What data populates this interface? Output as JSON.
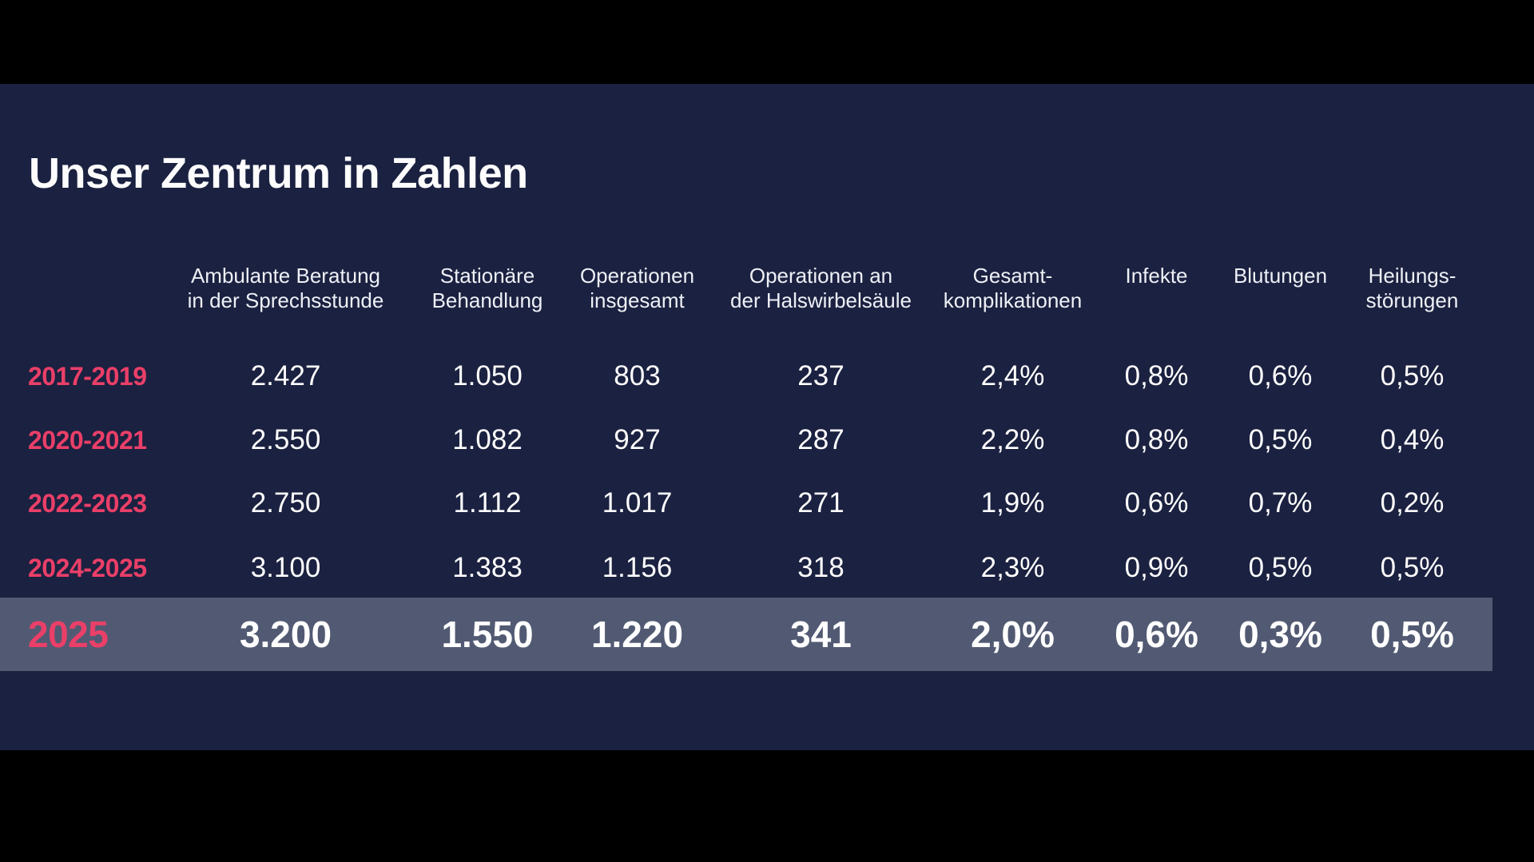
{
  "slide": {
    "title": "Unser Zentrum in Zahlen",
    "colors": {
      "letterbox": "#000000",
      "background": "#1b2140",
      "highlight_row_background": "#525a73",
      "accent_pink": "#ea3f68",
      "text_white": "#ffffff"
    }
  },
  "table": {
    "columns": [
      {
        "line1": "Ambulante Beratung",
        "line2": "in der Sprechsstunde"
      },
      {
        "line1": "Stationäre",
        "line2": "Behandlung"
      },
      {
        "line1": "Operationen",
        "line2": "insgesamt"
      },
      {
        "line1": "Operationen an",
        "line2": "der Halswirbelsäule"
      },
      {
        "line1": "Gesamt-",
        "line2": "komplikationen"
      },
      {
        "line1": "Infekte",
        "line2": ""
      },
      {
        "line1": "Blutungen",
        "line2": ""
      },
      {
        "line1": "Heilungs-",
        "line2": "störungen"
      }
    ],
    "rows": [
      {
        "period": "2017-2019",
        "values": [
          "2.427",
          "1.050",
          "803",
          "237",
          "2,4%",
          "0,8%",
          "0,6%",
          "0,5%"
        ],
        "highlight": false
      },
      {
        "period": "2020-2021",
        "values": [
          "2.550",
          "1.082",
          "927",
          "287",
          "2,2%",
          "0,8%",
          "0,5%",
          "0,4%"
        ],
        "highlight": false
      },
      {
        "period": "2022-2023",
        "values": [
          "2.750",
          "1.112",
          "1.017",
          "271",
          "1,9%",
          "0,6%",
          "0,7%",
          "0,2%"
        ],
        "highlight": false
      },
      {
        "period": "2024-2025",
        "values": [
          "3.100",
          "1.383",
          "1.156",
          "318",
          "2,3%",
          "0,9%",
          "0,5%",
          "0,5%"
        ],
        "highlight": false
      },
      {
        "period": "2025",
        "values": [
          "3.200",
          "1.550",
          "1.220",
          "341",
          "2,0%",
          "0,6%",
          "0,3%",
          "0,5%"
        ],
        "highlight": true
      }
    ]
  },
  "chart_data": {
    "type": "table",
    "title": "Unser Zentrum in Zahlen",
    "columns": [
      "Ambulante Beratung in der Sprechsstunde",
      "Stationäre Behandlung",
      "Operationen insgesamt",
      "Operationen an der Halswirbelsäule",
      "Gesamt-komplikationen",
      "Infekte",
      "Blutungen",
      "Heilungs-störungen"
    ],
    "rows": [
      {
        "period": "2017-2019",
        "values": [
          "2.427",
          "1.050",
          "803",
          "237",
          "2,4%",
          "0,8%",
          "0,6%",
          "0,5%"
        ]
      },
      {
        "period": "2020-2021",
        "values": [
          "2.550",
          "1.082",
          "927",
          "287",
          "2,2%",
          "0,8%",
          "0,5%",
          "0,4%"
        ]
      },
      {
        "period": "2022-2023",
        "values": [
          "2.750",
          "1.112",
          "1.017",
          "271",
          "1,9%",
          "0,6%",
          "0,7%",
          "0,2%"
        ]
      },
      {
        "period": "2024-2025",
        "values": [
          "3.100",
          "1.383",
          "1.156",
          "318",
          "2,3%",
          "0,9%",
          "0,5%",
          "0,5%"
        ]
      },
      {
        "period": "2025",
        "values": [
          "3.200",
          "1.550",
          "1.220",
          "341",
          "2,0%",
          "0,6%",
          "0,3%",
          "0,5%"
        ]
      }
    ],
    "layout_hints": {
      "highlighted_row": "2025",
      "row_label_color": "#ea3f68",
      "value_format": "german-decimal"
    }
  }
}
